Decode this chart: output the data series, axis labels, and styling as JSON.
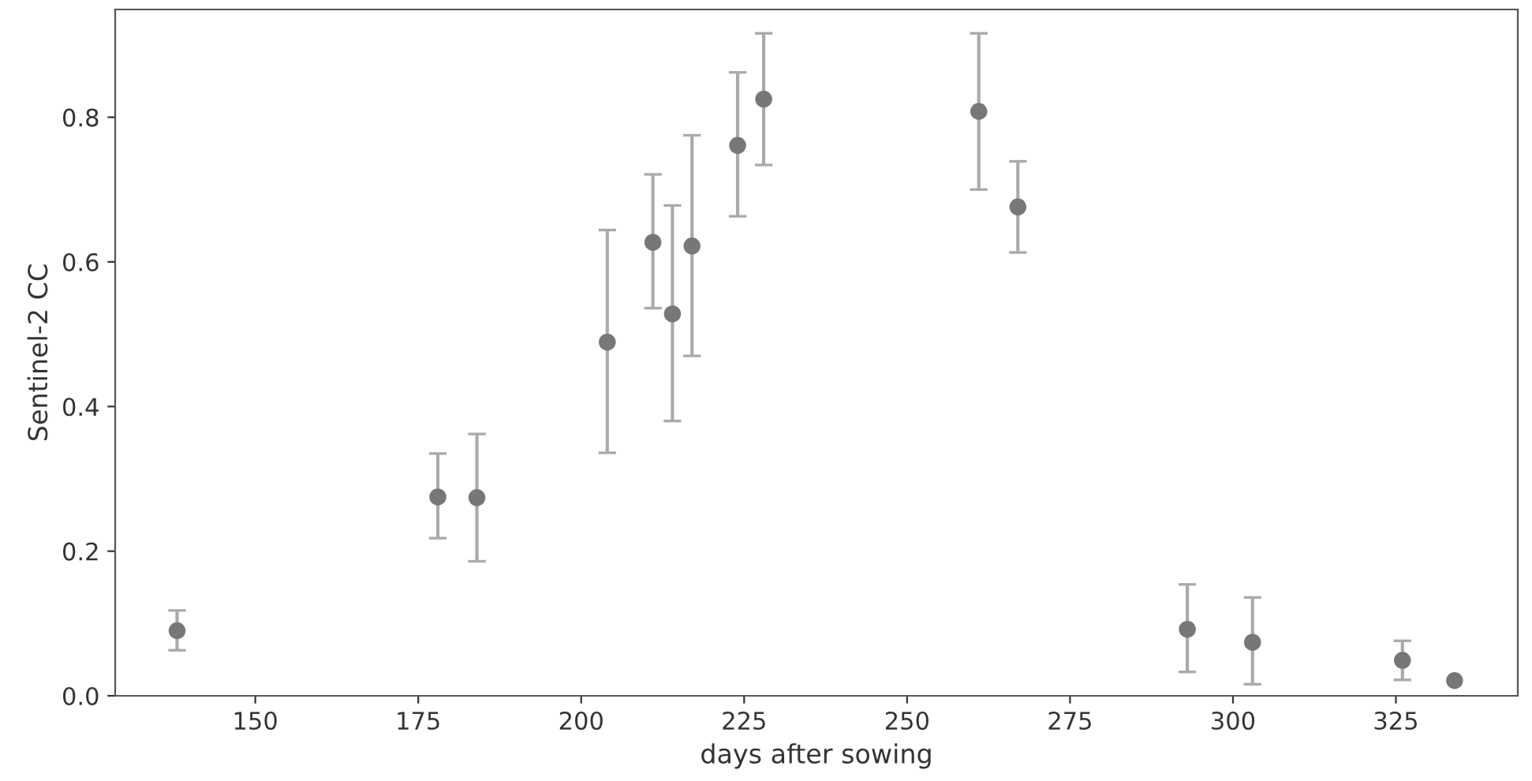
{
  "chart_data": {
    "type": "scatter",
    "xlabel": "days after sowing",
    "ylabel": "Sentinel-2 CC",
    "x": [
      138,
      178,
      184,
      204,
      211,
      214,
      217,
      224,
      228,
      261,
      267,
      293,
      303,
      326,
      334
    ],
    "values": [
      0.09,
      0.275,
      0.274,
      0.489,
      0.627,
      0.528,
      0.622,
      0.761,
      0.825,
      0.808,
      0.676,
      0.092,
      0.074,
      0.049,
      0.021
    ],
    "errors": [
      [
        0.063,
        0.118
      ],
      [
        0.218,
        0.335
      ],
      [
        0.186,
        0.362
      ],
      [
        0.336,
        0.644
      ],
      [
        0.536,
        0.721
      ],
      [
        0.38,
        0.678
      ],
      [
        0.47,
        0.775
      ],
      [
        0.663,
        0.862
      ],
      [
        0.734,
        0.916
      ],
      [
        0.7,
        0.916
      ],
      [
        0.613,
        0.739
      ],
      [
        0.033,
        0.154
      ],
      [
        0.016,
        0.136
      ],
      [
        0.022,
        0.076
      ],
      null
    ],
    "color": "#777777",
    "marker": "circle",
    "xlim": [
      128.5,
      343.7
    ],
    "ylim": [
      0.0,
      0.949
    ],
    "xticks": [
      150,
      175,
      200,
      225,
      250,
      275,
      300,
      325
    ],
    "yticks": [
      {
        "value": 0.0,
        "label": "0.0"
      },
      {
        "value": 0.2,
        "label": "0.2"
      },
      {
        "value": 0.4,
        "label": "0.4"
      },
      {
        "value": 0.6,
        "label": "0.6"
      },
      {
        "value": 0.8,
        "label": "0.8"
      }
    ],
    "grid": false,
    "legend": false
  }
}
